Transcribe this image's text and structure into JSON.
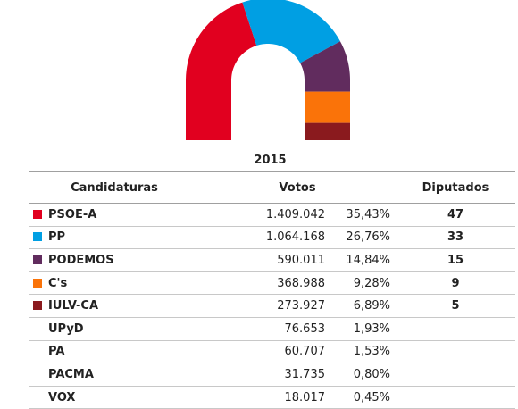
{
  "chart_data": {
    "type": "pie",
    "year": "2015",
    "categories": [
      "PSOE-A",
      "PP",
      "PODEMOS",
      "C's",
      "IULV-CA"
    ],
    "values": [
      47,
      33,
      15,
      9,
      5
    ],
    "colors": [
      "#e1001f",
      "#009fe3",
      "#612c5e",
      "#fa7309",
      "#8a1a1e"
    ]
  },
  "table": {
    "headers": {
      "name": "Candidaturas",
      "votes": "Votos",
      "seats": "Diputados"
    },
    "rows": [
      {
        "name": "PSOE-A",
        "votes": "1.409.042",
        "pct": "35,43%",
        "seats": "47",
        "color": "#e1001f"
      },
      {
        "name": "PP",
        "votes": "1.064.168",
        "pct": "26,76%",
        "seats": "33",
        "color": "#009fe3"
      },
      {
        "name": "PODEMOS",
        "votes": "590.011",
        "pct": "14,84%",
        "seats": "15",
        "color": "#612c5e"
      },
      {
        "name": "C's",
        "votes": "368.988",
        "pct": "9,28%",
        "seats": "9",
        "color": "#fa7309"
      },
      {
        "name": "IULV-CA",
        "votes": "273.927",
        "pct": "6,89%",
        "seats": "5",
        "color": "#8a1a1e"
      },
      {
        "name": "UPyD",
        "votes": "76.653",
        "pct": "1,93%",
        "seats": "",
        "color": ""
      },
      {
        "name": "PA",
        "votes": "60.707",
        "pct": "1,53%",
        "seats": "",
        "color": ""
      },
      {
        "name": "PACMA",
        "votes": "31.735",
        "pct": "0,80%",
        "seats": "",
        "color": ""
      },
      {
        "name": "VOX",
        "votes": "18.017",
        "pct": "0,45%",
        "seats": "",
        "color": ""
      }
    ]
  }
}
